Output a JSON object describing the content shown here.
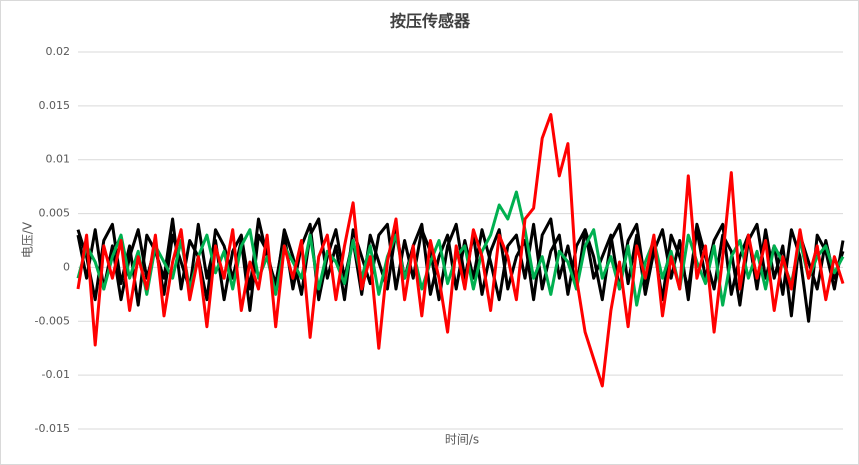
{
  "chart_data": {
    "type": "line",
    "title": "按压传感器",
    "x_label": "时间/s",
    "y_label": "电压/V",
    "ylim": [
      -0.015,
      0.02
    ],
    "yticks": [
      0.02,
      0.015,
      0.01,
      0.005,
      0,
      -0.005,
      -0.01,
      -0.015
    ],
    "grid": true,
    "series": [
      {
        "color": "#000000",
        "values": [
          0.003,
          -0.001,
          0.0035,
          -0.002,
          0.002,
          -0.003,
          0.001,
          0.0035,
          -0.001,
          0.002,
          -0.0025,
          0.003,
          0.0005,
          -0.002,
          0.004,
          -0.001,
          0.0025,
          -0.003,
          0.0015,
          0.003,
          -0.002,
          0.0045,
          0.001,
          -0.0015,
          0.003,
          -0.002,
          0.002,
          0.004,
          -0.003,
          0.001,
          0.0035,
          -0.001,
          0.0025,
          -0.0025,
          0.003,
          0.0005,
          -0.002,
          0.0035,
          -0.001,
          0.002,
          0.004,
          -0.0025,
          0.001,
          0.003,
          -0.002,
          0.0025,
          -0.001,
          0.0035,
          0.0005,
          -0.003,
          0.002,
          0.003,
          -0.001,
          0.004,
          -0.002,
          0.0015,
          0.003,
          -0.0025,
          0.002,
          0.0035,
          -0.001,
          0.001,
          0.003,
          -0.002,
          0.0025,
          0.004,
          -0.0015,
          0.002,
          -0.003,
          0.003,
          0.001,
          -0.002,
          0.0035,
          -0.001,
          0.0025,
          0.004,
          -0.0025,
          0.001,
          0.003,
          -0.002,
          0.0035,
          -0.001,
          0.002,
          -0.0045,
          0.003,
          0.0005,
          -0.002,
          0.0025,
          -0.001,
          0.0015
        ]
      },
      {
        "color": "#000000",
        "values": [
          0.0035,
          0.001,
          -0.003,
          0.0025,
          0.004,
          -0.0015,
          0.002,
          -0.0035,
          0.003,
          0.0015,
          -0.001,
          0.0045,
          -0.002,
          0.0025,
          0.001,
          -0.003,
          0.0035,
          0.002,
          -0.001,
          0.0025,
          -0.004,
          0.003,
          0.0015,
          -0.002,
          0.0035,
          0.001,
          -0.0025,
          0.003,
          0.0045,
          -0.001,
          0.002,
          -0.003,
          0.0035,
          0.001,
          -0.0015,
          0.003,
          0.004,
          -0.002,
          0.0025,
          -0.001,
          0.0035,
          0.0015,
          -0.003,
          0.002,
          0.004,
          -0.001,
          0.003,
          -0.0025,
          0.0015,
          0.0035,
          -0.002,
          0.001,
          0.0025,
          -0.003,
          0.003,
          0.0045,
          -0.001,
          0.002,
          -0.002,
          0.0035,
          0.001,
          -0.003,
          0.0025,
          0.004,
          -0.0015,
          0.003,
          -0.0025,
          0.0015,
          0.0035,
          -0.001,
          0.0025,
          -0.003,
          0.004,
          0.001,
          -0.002,
          0.003,
          0.0015,
          -0.0035,
          0.0025,
          0.004,
          -0.001,
          0.002,
          -0.0025,
          0.0035,
          0.001,
          -0.005,
          0.003,
          0.0015,
          -0.002,
          0.0025
        ]
      },
      {
        "color": "#00b050",
        "values": [
          -0.001,
          0.002,
          0.0005,
          -0.002,
          0.001,
          0.003,
          -0.001,
          0.0015,
          -0.0025,
          0.002,
          0.0005,
          -0.001,
          0.0025,
          -0.002,
          0.001,
          0.003,
          -0.0005,
          0.0015,
          -0.002,
          0.002,
          0.0035,
          -0.001,
          0.001,
          -0.0025,
          0.002,
          0.0005,
          -0.001,
          0.003,
          -0.002,
          0.0015,
          0.0005,
          -0.0015,
          0.0025,
          -0.001,
          0.002,
          -0.0025,
          0.001,
          0.003,
          -0.001,
          0.0015,
          -0.002,
          0.0005,
          0.0025,
          -0.0015,
          0.001,
          0.002,
          -0.002,
          0.0015,
          0.003,
          0.0058,
          0.0045,
          0.007,
          0.0035,
          -0.001,
          0.001,
          -0.0025,
          0.0015,
          0.0005,
          -0.002,
          0.002,
          0.0035,
          -0.001,
          0.001,
          -0.002,
          0.002,
          -0.0035,
          0.0005,
          0.0025,
          -0.001,
          0.0015,
          -0.002,
          0.003,
          0.0005,
          -0.0015,
          0.002,
          -0.0035,
          0.001,
          0.0025,
          -0.001,
          0.0015,
          -0.002,
          0.002,
          0.0005,
          -0.0015,
          0.0025,
          -0.001,
          0.001,
          0.002,
          -0.0005,
          0.001
        ]
      },
      {
        "color": "#ff0000",
        "values": [
          -0.002,
          0.003,
          -0.0072,
          0.002,
          -0.001,
          0.0025,
          -0.004,
          0.001,
          -0.002,
          0.003,
          -0.0045,
          0.0005,
          0.0035,
          -0.003,
          0.001,
          -0.0055,
          0.002,
          -0.001,
          0.0035,
          -0.004,
          0.0005,
          -0.002,
          0.003,
          -0.0055,
          0.002,
          -0.001,
          0.0025,
          -0.0065,
          0.001,
          0.003,
          -0.003,
          0.002,
          0.006,
          -0.002,
          0.001,
          -0.0075,
          0.0005,
          0.0045,
          -0.003,
          0.002,
          -0.0045,
          0.0025,
          -0.001,
          -0.006,
          0.002,
          -0.002,
          0.0035,
          0.001,
          -0.004,
          0.003,
          0.001,
          -0.003,
          0.0045,
          0.0055,
          0.012,
          0.0142,
          0.0085,
          0.0115,
          -0.001,
          -0.006,
          -0.0085,
          -0.011,
          -0.004,
          0.0005,
          -0.0055,
          0.002,
          -0.001,
          0.003,
          -0.0045,
          0.001,
          -0.002,
          0.0085,
          -0.001,
          0.002,
          -0.006,
          0.001,
          0.0088,
          -0.002,
          0.003,
          -0.001,
          0.0025,
          -0.004,
          0.001,
          -0.002,
          0.0035,
          -0.001,
          0.002,
          -0.003,
          0.001,
          -0.0015
        ]
      }
    ]
  }
}
